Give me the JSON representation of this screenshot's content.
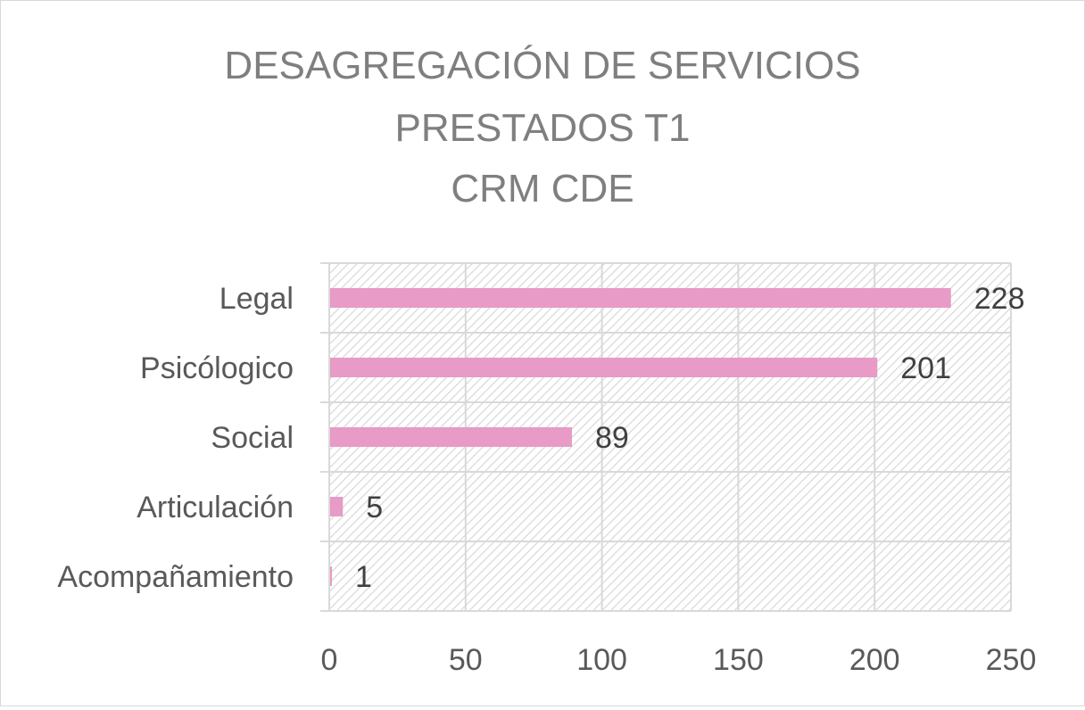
{
  "chart_data": {
    "type": "bar",
    "orientation": "horizontal",
    "title_lines": [
      "DESAGREGACIÓN DE SERVICIOS",
      "PRESTADOS T1",
      "CRM CDE"
    ],
    "categories": [
      "Legal",
      "Psicólogico",
      "Social",
      "Articulación",
      "Acompañamiento"
    ],
    "values": [
      228,
      201,
      89,
      5,
      1
    ],
    "data_labels": [
      "228",
      "201",
      "89",
      "5",
      "1"
    ],
    "xlim": [
      0,
      250
    ],
    "x_ticks": [
      0,
      50,
      100,
      150,
      200,
      250
    ],
    "xlabel": "",
    "ylabel": "",
    "grid": true,
    "legend": "none",
    "plot_pattern": "diagonal-hatch",
    "colors": {
      "bar": "#e79bc6",
      "title": "#7f7f7f",
      "labels": "#595959",
      "grid": "#d9d9d9"
    }
  }
}
